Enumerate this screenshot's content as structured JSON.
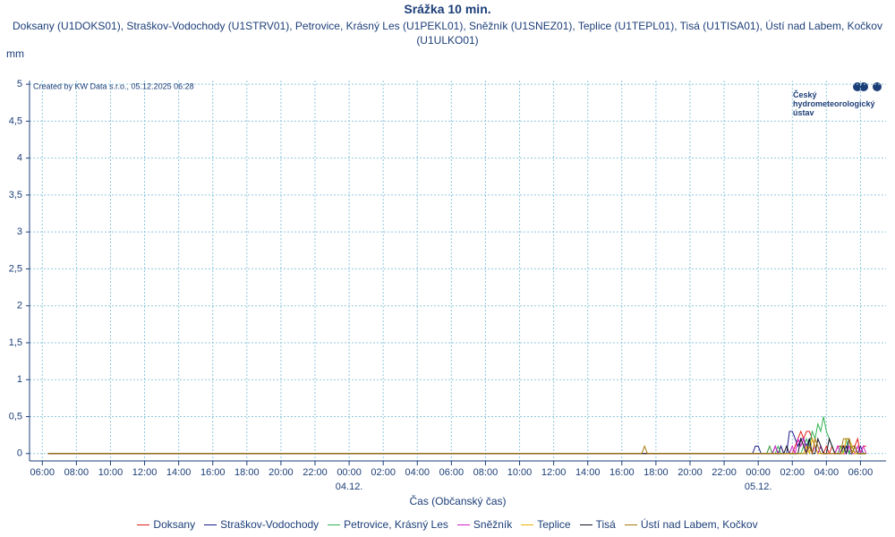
{
  "chart_data": {
    "type": "line",
    "title": "Srážka 10 min.",
    "subtitle": "Doksany (U1DOKS01), Straškov-Vodochody (U1STRV01), Petrovice, Krásný Les (U1PEKL01), Sněžník (U1SNEZ01), Teplice (U1TEPL01), Tisá (U1TISA01), Ústí nad Labem, Kočkov (U1ULKO01)",
    "y_label": "mm",
    "x_label": "Čas (Občanský čas)",
    "annotation": "Created by KW Data s.r.o., 05.12.2025 06:28",
    "logo_text": "Český hydrometeorologický ústav",
    "grid": true,
    "xlim": [
      -1125,
      1890
    ],
    "ylim": [
      -0.1,
      5.05
    ],
    "xticks": [
      {
        "value": -1080,
        "label": "06:00"
      },
      {
        "value": -960,
        "label": "08:00"
      },
      {
        "value": -840,
        "label": "10:00"
      },
      {
        "value": -720,
        "label": "12:00"
      },
      {
        "value": -600,
        "label": "14:00"
      },
      {
        "value": -480,
        "label": "16:00"
      },
      {
        "value": -360,
        "label": "18:00"
      },
      {
        "value": -240,
        "label": "20:00"
      },
      {
        "value": -120,
        "label": "22:00"
      },
      {
        "value": 0,
        "label": "00:00"
      },
      {
        "value": 120,
        "label": "02:00"
      },
      {
        "value": 240,
        "label": "04:00"
      },
      {
        "value": 360,
        "label": "06:00"
      },
      {
        "value": 480,
        "label": "08:00"
      },
      {
        "value": 600,
        "label": "10:00"
      },
      {
        "value": 720,
        "label": "12:00"
      },
      {
        "value": 840,
        "label": "14:00"
      },
      {
        "value": 960,
        "label": "16:00"
      },
      {
        "value": 1080,
        "label": "18:00"
      },
      {
        "value": 1200,
        "label": "20:00"
      },
      {
        "value": 1320,
        "label": "22:00"
      },
      {
        "value": 1440,
        "label": "00:00"
      },
      {
        "value": 1560,
        "label": "02:00"
      },
      {
        "value": 1680,
        "label": "04:00"
      },
      {
        "value": 1800,
        "label": "06:00"
      }
    ],
    "date_labels": [
      {
        "value": 0,
        "label": "04.12."
      },
      {
        "value": 1440,
        "label": "05.12."
      }
    ],
    "yticks": [
      0,
      {
        "value": 0.5,
        "label": "0,5"
      },
      1,
      {
        "value": 1.5,
        "label": "1,5"
      },
      2,
      {
        "value": 2.5,
        "label": "2,5"
      },
      3,
      {
        "value": 3.5,
        "label": "3,5"
      },
      4,
      {
        "value": 4.5,
        "label": "4,5"
      },
      5
    ],
    "x": [
      -1060,
      1030,
      1040,
      1050,
      1420,
      1430,
      1440,
      1450,
      1460,
      1470,
      1480,
      1490,
      1500,
      1510,
      1520,
      1530,
      1540,
      1550,
      1560,
      1570,
      1580,
      1590,
      1600,
      1610,
      1620,
      1630,
      1640,
      1650,
      1660,
      1670,
      1680,
      1690,
      1700,
      1710,
      1720,
      1730,
      1740,
      1750,
      1760,
      1770,
      1780,
      1790,
      1800,
      1810,
      1820
    ],
    "series": [
      {
        "name": "Doksany",
        "color": "#e0201c",
        "values": [
          0,
          0,
          0,
          0,
          0,
          0,
          0,
          0,
          0,
          0,
          0.1,
          0,
          0,
          0,
          0.1,
          0,
          0,
          0,
          0,
          0.1,
          0.2,
          0.3,
          0.2,
          0.3,
          0.3,
          0.2,
          0.1,
          0,
          0.1,
          0,
          0.1,
          0,
          0.1,
          0,
          0.1,
          0.1,
          0.1,
          0.1,
          0,
          0.1,
          0.1,
          0.2,
          0,
          0.1,
          0.1
        ]
      },
      {
        "name": "Straškov-Vodochody",
        "color": "#1a1a8c",
        "values": [
          0,
          0,
          0,
          0,
          0,
          0.1,
          0.1,
          0,
          0,
          0,
          0,
          0,
          0.1,
          0,
          0.1,
          0,
          0,
          0.3,
          0.3,
          0.2,
          0.1,
          0.2,
          0.2,
          0.1,
          0.2,
          0.2,
          0.1,
          0,
          0.1,
          0,
          0,
          0,
          0,
          0,
          0,
          0,
          0,
          0.1,
          0,
          0,
          0.1,
          0,
          0.1,
          0,
          0
        ]
      },
      {
        "name": "Petrovice, Krásný Les",
        "color": "#2fb350",
        "values": [
          0,
          0,
          0,
          0,
          0,
          0,
          0,
          0,
          0,
          0,
          0.1,
          0,
          0,
          0.1,
          0,
          0,
          0,
          0,
          0,
          0,
          0,
          0,
          0.1,
          0.2,
          0.1,
          0.3,
          0.2,
          0.4,
          0.3,
          0.5,
          0.3,
          0.2,
          0.1,
          0,
          0,
          0.1,
          0,
          0.2,
          0,
          0.1,
          0,
          0,
          0,
          0,
          0
        ]
      },
      {
        "name": "Sněžník",
        "color": "#d21fc4",
        "values": [
          0,
          0,
          0,
          0,
          0,
          0,
          0,
          0,
          0,
          0,
          0,
          0,
          0.1,
          0,
          0,
          0,
          0,
          0,
          0.1,
          0,
          0.2,
          0.1,
          0.2,
          0,
          0.1,
          0,
          0.1,
          0,
          0.1,
          0,
          0,
          0,
          0,
          0,
          0.1,
          0,
          0,
          0,
          0.1,
          0,
          0,
          0.1,
          0,
          0.1,
          0
        ]
      },
      {
        "name": "Teplice",
        "color": "#e8b400",
        "values": [
          0,
          0,
          0,
          0,
          0,
          0,
          0,
          0,
          0,
          0,
          0,
          0,
          0,
          0,
          0,
          0,
          0,
          0,
          0,
          0,
          0,
          0,
          0,
          0.1,
          0,
          0.2,
          0.1,
          0,
          0,
          0,
          0,
          0,
          0,
          0,
          0,
          0,
          0,
          0.2,
          0.2,
          0.1,
          0,
          0,
          0,
          0,
          0
        ]
      },
      {
        "name": "Tisá",
        "color": "#111122",
        "values": [
          0,
          0,
          0,
          0,
          0,
          0,
          0,
          0,
          0,
          0,
          0,
          0,
          0,
          0,
          0,
          0,
          0.1,
          0,
          0,
          0,
          0,
          0.2,
          0.1,
          0,
          0.2,
          0,
          0,
          0.2,
          0.1,
          0,
          0,
          0.2,
          0.1,
          0,
          0,
          0,
          0.1,
          0,
          0.2,
          0,
          0.1,
          0,
          0,
          0,
          0
        ]
      },
      {
        "name": "Ústí nad Labem, Kočkov",
        "color": "#a6780a",
        "values": [
          0,
          0,
          0.1,
          0,
          0,
          0,
          0,
          0,
          0,
          0,
          0,
          0,
          0,
          0,
          0,
          0,
          0,
          0,
          0,
          0,
          0,
          0,
          0,
          0,
          0.1,
          0,
          0.2,
          0.1,
          0,
          0,
          0,
          0,
          0,
          0,
          0,
          0,
          0.2,
          0.2,
          0.2,
          0,
          0.1,
          0,
          0,
          0,
          0
        ]
      }
    ]
  }
}
